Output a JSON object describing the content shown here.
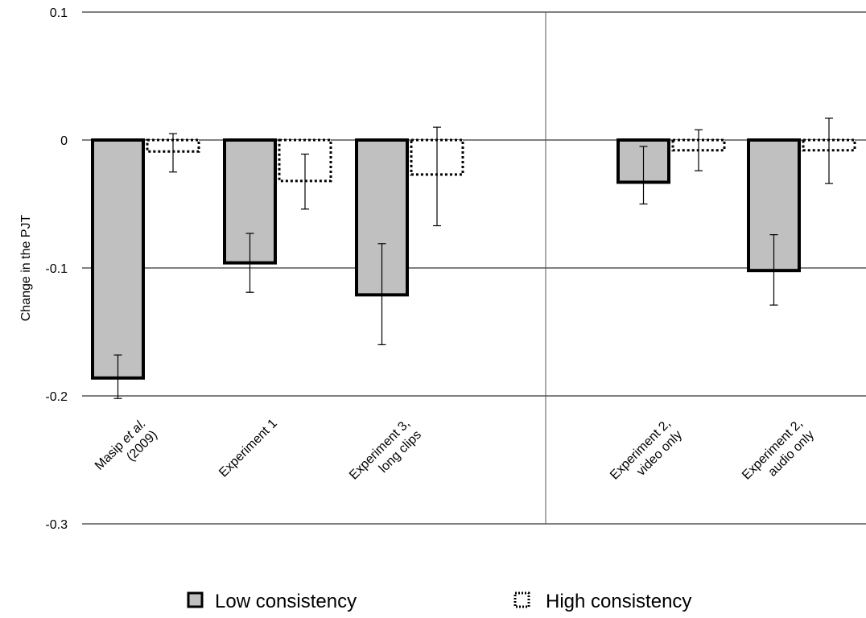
{
  "chart_data": {
    "type": "bar",
    "title": "",
    "xlabel": "",
    "ylabel": "Change in the PJT",
    "ylim": [
      -0.3,
      0.1
    ],
    "yticks": [
      {
        "value": 0.1,
        "label": "0.1"
      },
      {
        "value": 0,
        "label": "0"
      },
      {
        "value": -0.1,
        "label": "-0.1"
      },
      {
        "value": -0.2,
        "label": "-0.2"
      },
      {
        "value": -0.3,
        "label": "-0.3"
      }
    ],
    "grid": true,
    "legend_position": "bottom",
    "categories": [
      {
        "lines": [
          {
            "text": "Masip "
          },
          {
            "text": "et al.",
            "italic": true
          }
        ],
        "line2": "(2009)"
      },
      {
        "line1": "Experiment 1",
        "line2": ""
      },
      {
        "line1": "Experiment 3,",
        "line2": "long clips"
      },
      {
        "line1": "Experiment 2,",
        "line2": "video only"
      },
      {
        "line1": "Experiment 2,",
        "line2": "audio only"
      }
    ],
    "group_separator_after": 2,
    "series": [
      {
        "name": "Low consistency",
        "style": "solid",
        "fill": "#c0c0c0",
        "values": [
          -0.186,
          -0.096,
          -0.121,
          -0.033,
          -0.102
        ],
        "error_low": [
          -0.202,
          -0.119,
          -0.16,
          -0.05,
          -0.129
        ],
        "error_high": [
          -0.168,
          -0.073,
          -0.081,
          -0.005,
          -0.074
        ]
      },
      {
        "name": "High consistency",
        "style": "dotted",
        "fill": "#ffffff",
        "values": [
          -0.009,
          -0.032,
          -0.027,
          -0.008,
          -0.008
        ],
        "error_low": [
          -0.025,
          -0.054,
          -0.067,
          -0.024,
          -0.034
        ],
        "error_high": [
          0.005,
          -0.011,
          0.01,
          0.008,
          0.017
        ]
      }
    ]
  }
}
